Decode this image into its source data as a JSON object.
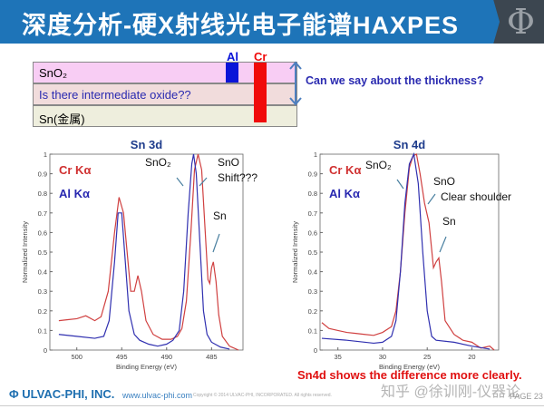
{
  "header": {
    "title": "深度分析-硬X射线光电子能谱HAXPES",
    "logo": "Φ"
  },
  "diagram": {
    "layers": [
      {
        "label": "SnO₂",
        "color": "#f8cdf4"
      },
      {
        "label": "Is there intermediate oxide??",
        "color": "#f1dcdc",
        "text_color": "#2a2ab0"
      },
      {
        "label": "Sn(金属)",
        "color": "#eeeedd"
      }
    ],
    "beam_al": {
      "label": "Al",
      "color": "#0a14d8"
    },
    "beam_cr": {
      "label": "Cr",
      "color": "#f00a0a"
    },
    "question": "Can we say about the thickness?"
  },
  "chart_data": [
    {
      "type": "line",
      "title": "Sn 3d",
      "xlabel": "Binding Energy (eV)",
      "ylabel": "Normalized Intensity",
      "xlim": [
        503,
        481.5
      ],
      "ylim": [
        0,
        1
      ],
      "xticks": [
        500,
        495,
        490,
        485
      ],
      "yticks": [
        0,
        0.1,
        0.2,
        0.3,
        0.4,
        0.5,
        0.6,
        0.7,
        0.8,
        0.9,
        1
      ],
      "legend": [
        {
          "name": "Cr Kα",
          "color": "#d03030"
        },
        {
          "name": "Al Kα",
          "color": "#2828b0"
        }
      ],
      "annotations": [
        "SnO₂",
        "SnO",
        "Shift???",
        "Sn"
      ],
      "series": [
        {
          "name": "Cr Kα",
          "color": "#d04040",
          "x": [
            502,
            501,
            500,
            499,
            498,
            497.3,
            496.5,
            495.8,
            495.3,
            494.8,
            494.3,
            494,
            493.6,
            493.2,
            492.8,
            492.3,
            491.5,
            490.5,
            489.5,
            488.8,
            488.3,
            487.8,
            487.3,
            486.9,
            486.5,
            486.1,
            485.7,
            485.4,
            485.2,
            485,
            484.8,
            484.5,
            484.2,
            483.8,
            483,
            482
          ],
          "y": [
            0.15,
            0.155,
            0.16,
            0.175,
            0.15,
            0.17,
            0.3,
            0.6,
            0.78,
            0.7,
            0.45,
            0.3,
            0.3,
            0.38,
            0.3,
            0.15,
            0.08,
            0.055,
            0.055,
            0.07,
            0.11,
            0.25,
            0.6,
            0.92,
            1.0,
            0.92,
            0.6,
            0.36,
            0.34,
            0.42,
            0.45,
            0.35,
            0.18,
            0.07,
            0.02,
            0.0
          ]
        },
        {
          "name": "Al Kα",
          "color": "#3030b0",
          "x": [
            502,
            500,
            498,
            497,
            496.4,
            495.8,
            495.4,
            495,
            494.6,
            494.2,
            493.6,
            493,
            492,
            491,
            490,
            489.3,
            488.6,
            488.1,
            487.6,
            487.2,
            487,
            486.7,
            486.3,
            485.9,
            485.5,
            485,
            484,
            483
          ],
          "y": [
            0.08,
            0.07,
            0.06,
            0.07,
            0.15,
            0.45,
            0.7,
            0.7,
            0.45,
            0.2,
            0.08,
            0.05,
            0.03,
            0.02,
            0.03,
            0.05,
            0.1,
            0.3,
            0.7,
            0.95,
            1.0,
            0.9,
            0.55,
            0.2,
            0.08,
            0.04,
            0.015,
            0.005
          ]
        }
      ]
    },
    {
      "type": "line",
      "title": "Sn 4d",
      "xlabel": "Binding Energy (eV)",
      "ylabel": "Normalized Intensity",
      "xlim": [
        37,
        17
      ],
      "ylim": [
        0,
        1
      ],
      "xticks": [
        35,
        30,
        25,
        20
      ],
      "yticks": [
        0,
        0.1,
        0.2,
        0.3,
        0.4,
        0.5,
        0.6,
        0.7,
        0.8,
        0.9,
        1
      ],
      "legend": [
        {
          "name": "Cr Kα",
          "color": "#d03030"
        },
        {
          "name": "Al Kα",
          "color": "#2828b0"
        }
      ],
      "annotations": [
        "SnO₂",
        "SnO",
        "Clear shoulder",
        "Sn"
      ],
      "series": [
        {
          "name": "Cr Kα",
          "color": "#d04040",
          "x": [
            36.8,
            36,
            35,
            34,
            33,
            32,
            31,
            30,
            29,
            28.5,
            28,
            27.5,
            27,
            26.6,
            26.2,
            25.8,
            25.3,
            24.8,
            24.3,
            24,
            23.7,
            23.4,
            23,
            22,
            21,
            20,
            19,
            18,
            17.5
          ],
          "y": [
            0.14,
            0.11,
            0.1,
            0.09,
            0.085,
            0.08,
            0.075,
            0.09,
            0.12,
            0.2,
            0.4,
            0.7,
            0.93,
            0.99,
            1.0,
            0.9,
            0.75,
            0.65,
            0.42,
            0.45,
            0.47,
            0.35,
            0.15,
            0.08,
            0.05,
            0.04,
            0.01,
            0.02,
            0.0
          ]
        },
        {
          "name": "Al Kα",
          "color": "#3030b0",
          "x": [
            36.8,
            34,
            31,
            30,
            29,
            28.5,
            28,
            27.5,
            27,
            26.5,
            26,
            25.5,
            25,
            24.5,
            24,
            22,
            20,
            18
          ],
          "y": [
            0.06,
            0.05,
            0.035,
            0.04,
            0.07,
            0.15,
            0.4,
            0.75,
            0.95,
            1.0,
            0.85,
            0.5,
            0.2,
            0.07,
            0.05,
            0.04,
            0.02,
            0.005
          ]
        }
      ]
    }
  ],
  "conclusion": "Sn4d shows the difference more clearly.",
  "footer": {
    "company": "ULVAC-PHI, INC.",
    "url": "www.ulvac-phi.com",
    "copyright": "Copyright © 2014 ULVAC-PHI, INCORPORATED. All rights reserved.",
    "page": "PAGE 23",
    "watermark": "知乎 @徐训刚-仪器论"
  }
}
